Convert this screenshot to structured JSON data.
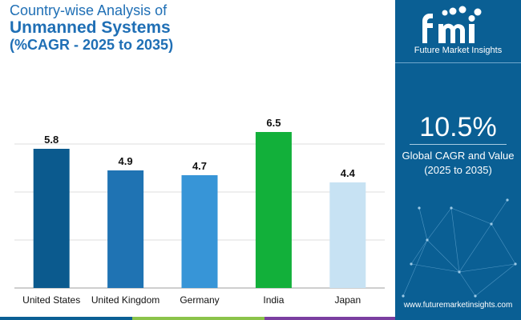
{
  "title": {
    "line1": "Country-wise Analysis of",
    "line2": "Unmanned Systems",
    "line3": "(%CAGR - 2025 to 2035)"
  },
  "brand": {
    "name": "Future Market Insights",
    "website": "www.futuremarketinsights.com"
  },
  "highlight": {
    "value": "10.5%",
    "label_line1": "Global CAGR and Value",
    "label_line2": "(2025 to 2035)"
  },
  "chart_data": {
    "type": "bar",
    "title": "Country-wise Analysis of Unmanned Systems (%CAGR - 2025 to 2035)",
    "xlabel": "",
    "ylabel": "",
    "categories": [
      "United States",
      "United Kingdom",
      "Germany",
      "India",
      "Japan"
    ],
    "values": [
      5.8,
      4.9,
      4.7,
      6.5,
      4.4
    ],
    "value_labels": [
      "5.8",
      "4.9",
      "4.7",
      "6.5",
      "4.4"
    ],
    "colors": [
      "#0b5a8e",
      "#1f73b3",
      "#3795d7",
      "#12b03a",
      "#c7e2f3"
    ],
    "ylim": [
      0,
      7
    ],
    "gridlines": [
      2,
      4,
      6
    ]
  },
  "colors": {
    "title": "#1f6fb5",
    "panel": "#0a5f94",
    "bottom_stripes": [
      "#0a5f94",
      "#8bc34a",
      "#7b3fa0"
    ]
  }
}
